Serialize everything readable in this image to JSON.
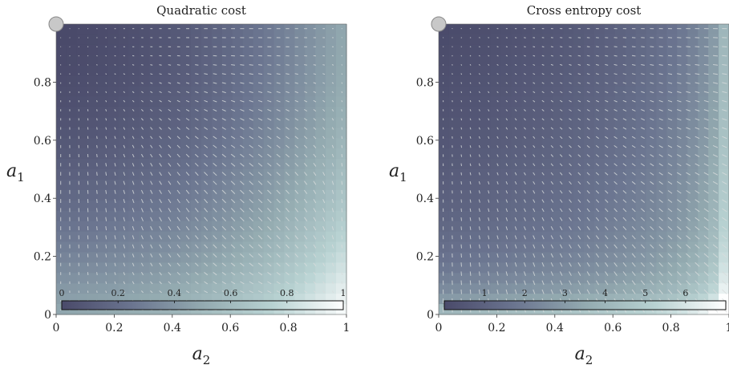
{
  "colors": {
    "gradient": [
      "#4a4a6a",
      "#6b7590",
      "#93aab0",
      "#b8d2d2",
      "#ffffff"
    ],
    "arrow": "#d8dcdc",
    "point": "#c8c8c8"
  },
  "chart_data": [
    {
      "type": "heatmap",
      "title": "Quadratic cost",
      "xlabel": "a_2",
      "ylabel": "a_1",
      "xlim": [
        0,
        1
      ],
      "ylim": [
        0,
        1
      ],
      "xticks": [
        "0",
        "0.2",
        "0.4",
        "0.6",
        "0.8",
        "1"
      ],
      "yticks": [
        "0",
        "0.2",
        "0.4",
        "0.6",
        "0.8"
      ],
      "ytick_values": [
        0,
        0.2,
        0.4,
        0.6,
        0.8
      ],
      "colorbar": {
        "min": 0,
        "max": 1,
        "ticks": [
          "0",
          "0.2",
          "0.4",
          "0.6",
          "0.8",
          "1"
        ],
        "tick_values": [
          0,
          0.2,
          0.4,
          0.6,
          0.8,
          1
        ]
      },
      "function": "quadratic",
      "marker": {
        "a2": 0,
        "a1": 1
      }
    },
    {
      "type": "heatmap",
      "title": "Cross entropy cost",
      "xlabel": "a_2",
      "ylabel": "a_1",
      "xlim": [
        0,
        1
      ],
      "ylim": [
        0,
        1
      ],
      "xticks": [
        "0",
        "0.2",
        "0.4",
        "0.6",
        "0.8",
        "1"
      ],
      "yticks": [
        "0",
        "0.2",
        "0.4",
        "0.6",
        "0.8"
      ],
      "ytick_values": [
        0,
        0.2,
        0.4,
        0.6,
        0.8
      ],
      "colorbar": {
        "min": 0,
        "max": 7,
        "ticks": [
          "1",
          "2",
          "3",
          "4",
          "5",
          "6"
        ],
        "tick_values": [
          1,
          2,
          3,
          4,
          5,
          6
        ]
      },
      "function": "cross_entropy",
      "marker": {
        "a2": 0,
        "a1": 1
      }
    }
  ]
}
